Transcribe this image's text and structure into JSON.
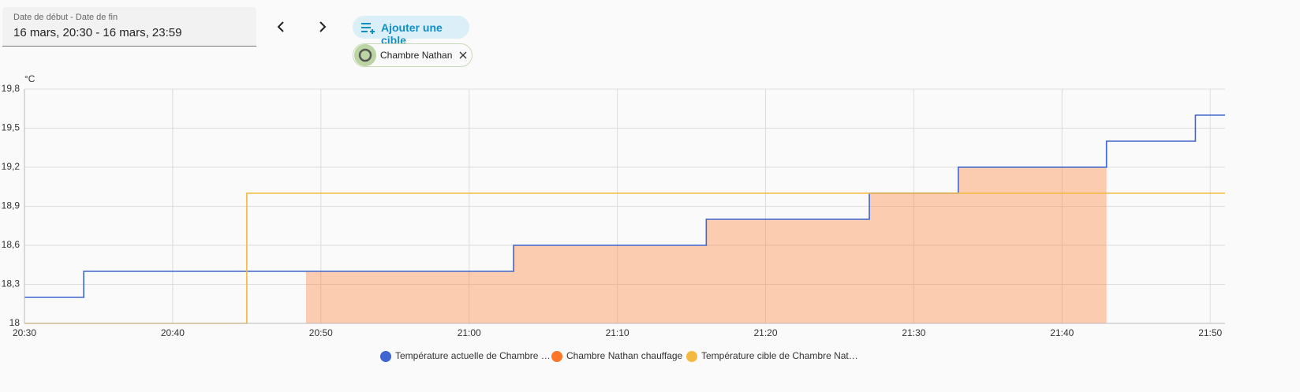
{
  "ui": {
    "date_label": "Date de début - Date de fin",
    "date_value": "16 mars, 20:30 - 16 mars, 23:59",
    "add_target": "Ajouter une cible",
    "chip": "Chambre Nathan"
  },
  "chart_data": {
    "type": "step",
    "y_label": "°C",
    "xlim": [
      "20:30",
      "21:51"
    ],
    "xticks": [
      "20:30",
      "20:40",
      "20:50",
      "21:00",
      "21:10",
      "21:20",
      "21:30",
      "21:40",
      "21:50"
    ],
    "ylim": [
      18,
      19.8
    ],
    "yticks": [
      18,
      {
        "value": 18.3,
        "label": "18,3"
      },
      {
        "value": 18.6,
        "label": "18,6"
      },
      {
        "value": 18.9,
        "label": "18,9"
      },
      {
        "value": 19.2,
        "label": "19,2"
      },
      {
        "value": 19.5,
        "label": "19,5"
      },
      {
        "value": 19.8,
        "label": "19,8"
      }
    ],
    "grid": true,
    "series": [
      {
        "name": "Température actuelle de Chambre …",
        "color": "#4066cf",
        "kind": "line",
        "x": [
          "20:30",
          "20:34",
          "21:03",
          "21:16",
          "21:27",
          "21:33",
          "21:43",
          "21:49",
          "21:51"
        ],
        "values": [
          18.2,
          18.4,
          18.6,
          18.8,
          19.0,
          19.2,
          19.4,
          19.6,
          19.6
        ]
      },
      {
        "name": "Chambre Nathan chauffage",
        "color": "#ff7629",
        "kind": "area",
        "x": [
          "20:49",
          "21:03",
          "21:16",
          "21:27",
          "21:33",
          "21:43"
        ],
        "values": [
          18.4,
          18.6,
          18.8,
          19.0,
          19.2,
          19.2
        ]
      },
      {
        "name": "Température cible de Chambre Nat…",
        "color": "#f5b942",
        "kind": "line",
        "x": [
          "20:30",
          "20:45",
          "21:51"
        ],
        "values": [
          18,
          19.0,
          19.0
        ]
      }
    ]
  }
}
